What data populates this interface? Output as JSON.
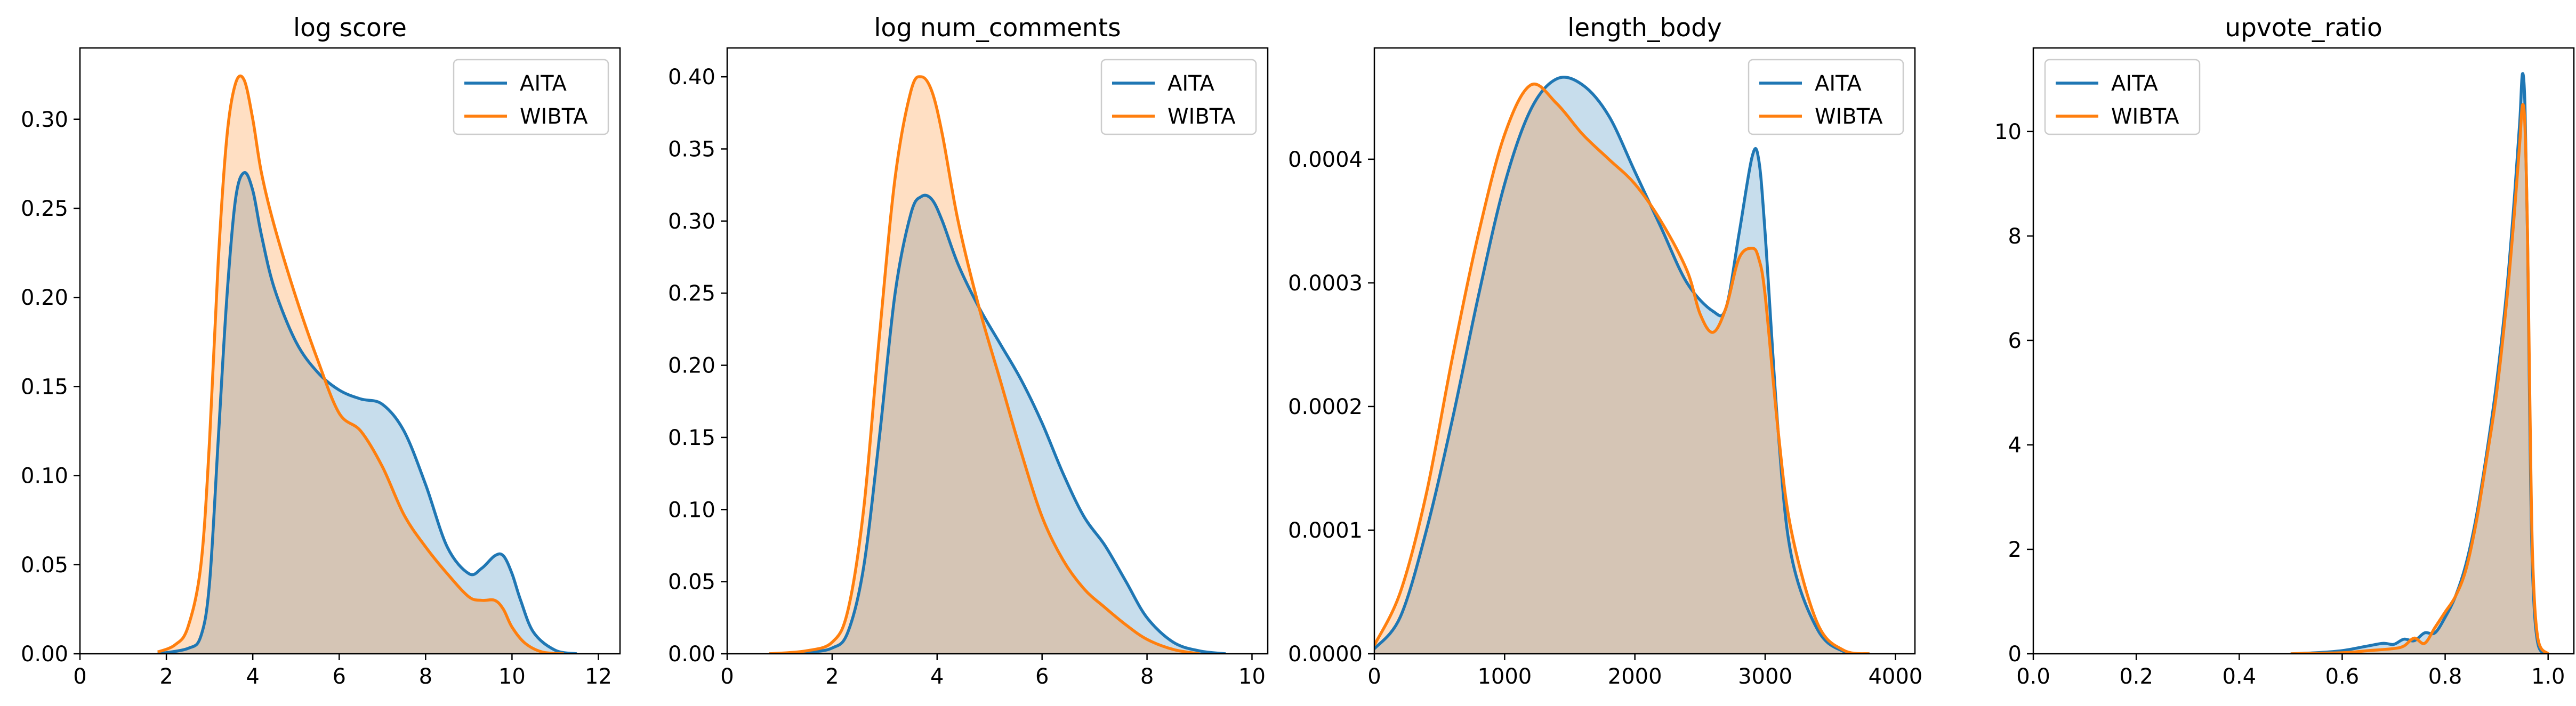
{
  "colors": {
    "aita": "#1f77b4",
    "wibta": "#ff7f0e"
  },
  "chart_data": [
    {
      "type": "area",
      "title": "log score",
      "xlabel": "",
      "ylabel": "",
      "xlim": [
        0,
        12.5
      ],
      "ylim": [
        0,
        0.34
      ],
      "xticks": [
        0,
        2,
        4,
        6,
        8,
        10,
        12
      ],
      "xtick_labels": [
        "0",
        "2",
        "4",
        "6",
        "8",
        "10",
        "12"
      ],
      "yticks": [
        0,
        0.05,
        0.1,
        0.15,
        0.2,
        0.25,
        0.3
      ],
      "ytick_labels": [
        "0.00",
        "0.05",
        "0.10",
        "0.15",
        "0.20",
        "0.25",
        "0.30"
      ],
      "legend": {
        "position": "top-right",
        "entries": [
          "AITA",
          "WIBTA"
        ]
      },
      "grid": false,
      "series": [
        {
          "name": "AITA",
          "x": [
            1.8,
            2.5,
            2.8,
            3.0,
            3.2,
            3.4,
            3.6,
            3.8,
            4.0,
            4.2,
            4.5,
            5.0,
            5.5,
            6.0,
            6.5,
            7.0,
            7.5,
            8.0,
            8.5,
            9.0,
            9.3,
            9.6,
            9.8,
            10.0,
            10.2,
            10.5,
            11.0,
            11.5
          ],
          "y": [
            0,
            0.003,
            0.01,
            0.04,
            0.12,
            0.2,
            0.255,
            0.27,
            0.26,
            0.235,
            0.205,
            0.175,
            0.158,
            0.148,
            0.143,
            0.14,
            0.125,
            0.095,
            0.06,
            0.045,
            0.048,
            0.055,
            0.055,
            0.045,
            0.03,
            0.012,
            0.002,
            0
          ]
        },
        {
          "name": "WIBTA",
          "x": [
            1.8,
            2.2,
            2.5,
            2.8,
            3.0,
            3.2,
            3.4,
            3.6,
            3.8,
            4.0,
            4.2,
            4.5,
            5.0,
            5.5,
            6.0,
            6.5,
            7.0,
            7.5,
            8.0,
            8.5,
            9.0,
            9.3,
            9.6,
            9.8,
            10.0,
            10.3,
            10.7,
            11.2
          ],
          "y": [
            0.001,
            0.005,
            0.015,
            0.05,
            0.12,
            0.22,
            0.29,
            0.32,
            0.322,
            0.3,
            0.27,
            0.24,
            0.2,
            0.165,
            0.135,
            0.125,
            0.105,
            0.078,
            0.06,
            0.045,
            0.032,
            0.03,
            0.03,
            0.025,
            0.015,
            0.006,
            0.001,
            0
          ]
        }
      ]
    },
    {
      "type": "area",
      "title": "log num_comments",
      "xlabel": "",
      "ylabel": "",
      "xlim": [
        0,
        10.3
      ],
      "ylim": [
        0,
        0.42
      ],
      "xticks": [
        0,
        2,
        4,
        6,
        8,
        10
      ],
      "xtick_labels": [
        "0",
        "2",
        "4",
        "6",
        "8",
        "10"
      ],
      "yticks": [
        0,
        0.05,
        0.1,
        0.15,
        0.2,
        0.25,
        0.3,
        0.35,
        0.4
      ],
      "ytick_labels": [
        "0.00",
        "0.05",
        "0.10",
        "0.15",
        "0.20",
        "0.25",
        "0.30",
        "0.35",
        "0.40"
      ],
      "legend": {
        "position": "top-right",
        "entries": [
          "AITA",
          "WIBTA"
        ]
      },
      "grid": false,
      "series": [
        {
          "name": "AITA",
          "x": [
            0.8,
            1.5,
            2.0,
            2.3,
            2.6,
            2.9,
            3.2,
            3.5,
            3.7,
            3.9,
            4.1,
            4.4,
            4.8,
            5.2,
            5.6,
            6.0,
            6.4,
            6.8,
            7.2,
            7.6,
            8.0,
            8.5,
            9.0,
            9.5
          ],
          "y": [
            0,
            0.001,
            0.004,
            0.015,
            0.06,
            0.15,
            0.25,
            0.305,
            0.317,
            0.315,
            0.3,
            0.27,
            0.24,
            0.215,
            0.19,
            0.16,
            0.125,
            0.095,
            0.075,
            0.05,
            0.025,
            0.008,
            0.002,
            0
          ]
        },
        {
          "name": "WIBTA",
          "x": [
            0.8,
            1.5,
            2.0,
            2.3,
            2.6,
            2.9,
            3.2,
            3.5,
            3.7,
            3.9,
            4.1,
            4.4,
            4.8,
            5.2,
            5.6,
            6.0,
            6.4,
            6.8,
            7.2,
            7.6,
            8.0,
            8.5,
            9.0
          ],
          "y": [
            0,
            0.002,
            0.008,
            0.03,
            0.1,
            0.22,
            0.33,
            0.39,
            0.4,
            0.39,
            0.36,
            0.3,
            0.24,
            0.19,
            0.14,
            0.095,
            0.065,
            0.045,
            0.032,
            0.02,
            0.01,
            0.003,
            0
          ]
        }
      ]
    },
    {
      "type": "area",
      "title": "length_body",
      "xlabel": "",
      "ylabel": "",
      "xlim": [
        0,
        4150
      ],
      "ylim": [
        0,
        0.00049
      ],
      "xticks": [
        0,
        1000,
        2000,
        3000,
        4000
      ],
      "xtick_labels": [
        "0",
        "1000",
        "2000",
        "3000",
        "4000"
      ],
      "yticks": [
        0,
        0.0001,
        0.0002,
        0.0003,
        0.0004
      ],
      "ytick_labels": [
        "0.0000",
        "0.0001",
        "0.0002",
        "0.0003",
        "0.0004"
      ],
      "legend": {
        "position": "top-right",
        "entries": [
          "AITA",
          "WIBTA"
        ]
      },
      "grid": false,
      "series": [
        {
          "name": "AITA",
          "x": [
            0,
            200,
            400,
            600,
            800,
            1000,
            1200,
            1400,
            1600,
            1800,
            2000,
            2200,
            2400,
            2600,
            2700,
            2800,
            2900,
            2950,
            3000,
            3100,
            3200,
            3400,
            3600,
            3800
          ],
          "y": [
            4e-06,
            3e-05,
            0.0001,
            0.00019,
            0.00029,
            0.00038,
            0.00044,
            0.000465,
            0.00046,
            0.000435,
            0.00039,
            0.000345,
            0.0003,
            0.000277,
            0.00028,
            0.00034,
            0.000402,
            0.0004,
            0.00034,
            0.00018,
            8e-05,
            2e-05,
            2e-06,
            0
          ]
        },
        {
          "name": "WIBTA",
          "x": [
            0,
            200,
            400,
            600,
            800,
            1000,
            1200,
            1400,
            1600,
            1800,
            2000,
            2200,
            2400,
            2500,
            2600,
            2700,
            2800,
            2900,
            2950,
            3000,
            3100,
            3200,
            3400,
            3600,
            3800
          ],
          "y": [
            7e-06,
            5e-05,
            0.00013,
            0.00024,
            0.00034,
            0.00042,
            0.00046,
            0.000445,
            0.00042,
            0.0004,
            0.00038,
            0.00035,
            0.00031,
            0.000275,
            0.00026,
            0.00028,
            0.00032,
            0.000328,
            0.00032,
            0.00029,
            0.00018,
            0.0001,
            2.5e-05,
            3e-06,
            0
          ]
        }
      ]
    },
    {
      "type": "area",
      "title": "upvote_ratio",
      "xlabel": "",
      "ylabel": "",
      "xlim": [
        0,
        1.05
      ],
      "ylim": [
        0,
        11.6
      ],
      "xticks": [
        0,
        0.2,
        0.4,
        0.6,
        0.8,
        1.0
      ],
      "xtick_labels": [
        "0.0",
        "0.2",
        "0.4",
        "0.6",
        "0.8",
        "1.0"
      ],
      "yticks": [
        0,
        2,
        4,
        6,
        8,
        10
      ],
      "ytick_labels": [
        "0",
        "2",
        "4",
        "6",
        "8",
        "10"
      ],
      "legend": {
        "position": "top-left",
        "entries": [
          "AITA",
          "WIBTA"
        ]
      },
      "grid": false,
      "series": [
        {
          "name": "AITA",
          "x": [
            0.5,
            0.55,
            0.6,
            0.65,
            0.68,
            0.7,
            0.72,
            0.74,
            0.76,
            0.78,
            0.8,
            0.82,
            0.84,
            0.86,
            0.88,
            0.9,
            0.92,
            0.935,
            0.945,
            0.95,
            0.955,
            0.96,
            0.965,
            0.97,
            0.98,
            1.0
          ],
          "y": [
            0,
            0.02,
            0.06,
            0.15,
            0.2,
            0.18,
            0.28,
            0.25,
            0.4,
            0.4,
            0.7,
            1.1,
            1.7,
            2.6,
            3.8,
            5.2,
            7.0,
            8.8,
            10.2,
            11.1,
            10.5,
            8.0,
            4.0,
            1.5,
            0.2,
            0
          ]
        },
        {
          "name": "WIBTA",
          "x": [
            0.5,
            0.6,
            0.65,
            0.7,
            0.72,
            0.74,
            0.76,
            0.78,
            0.8,
            0.82,
            0.84,
            0.86,
            0.88,
            0.9,
            0.92,
            0.935,
            0.945,
            0.95,
            0.955,
            0.96,
            0.965,
            0.97,
            0.98,
            1.0
          ],
          "y": [
            0,
            0.02,
            0.06,
            0.1,
            0.15,
            0.3,
            0.2,
            0.5,
            0.8,
            1.1,
            1.6,
            2.5,
            3.7,
            5.0,
            6.8,
            8.5,
            9.8,
            10.5,
            10.1,
            8.0,
            4.5,
            1.8,
            0.3,
            0
          ]
        }
      ]
    }
  ]
}
